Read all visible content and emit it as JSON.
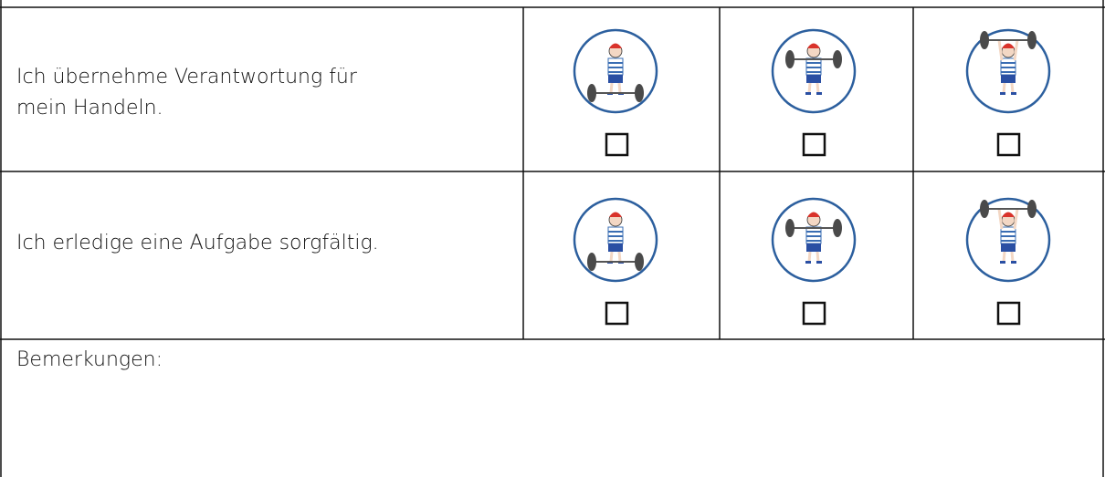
{
  "table": {
    "rows": [
      {
        "statement": "Ich übernehme Verantwortung für mein Handeln."
      },
      {
        "statement": "Ich erledige eine Aufgabe sorgfältig."
      }
    ],
    "remarks_label": "Bemerkungen:"
  }
}
